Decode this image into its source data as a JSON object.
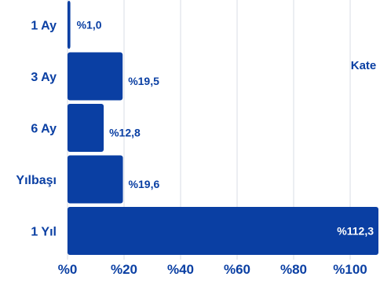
{
  "chart_data": {
    "type": "bar",
    "orientation": "horizontal",
    "categories": [
      "1 Ay",
      "3 Ay",
      "6 Ay",
      "Yılbaşı",
      "1 Yıl"
    ],
    "values": [
      1.0,
      19.5,
      12.8,
      19.6,
      112.3
    ],
    "value_labels": [
      "%1,0",
      "%19,5",
      "%12,8",
      "%19,6",
      "%112,3"
    ],
    "x_ticks": [
      0,
      20,
      40,
      60,
      80,
      100
    ],
    "x_tick_labels": [
      "%0",
      "%20",
      "%40",
      "%60",
      "%80",
      "%100"
    ],
    "xlim": [
      0,
      110
    ],
    "grid": true,
    "legend_label": "Kate",
    "legend_position": "top-right",
    "colors": {
      "bar": "#0a3fa3",
      "label_text": "#0a3fa3",
      "label_text_inside": "#ffffff",
      "grid": "#d8dce6"
    }
  }
}
